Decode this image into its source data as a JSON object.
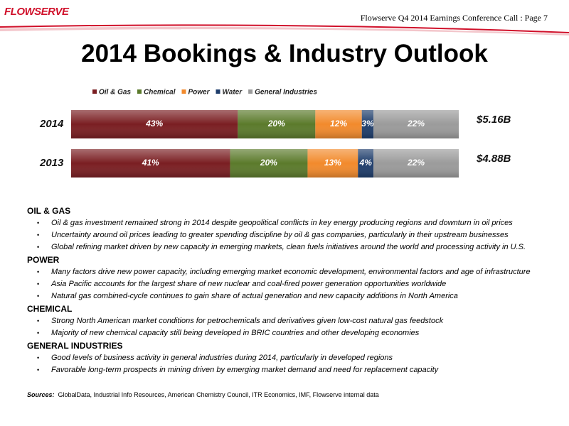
{
  "header": {
    "logo": "FLOWSERVE",
    "text": "Flowserve Q4 2014 Earnings Conference Call  : Page 7"
  },
  "title": "2014 Bookings & Industry Outlook",
  "chart_data": {
    "type": "stacked-bar-horizontal",
    "categories": [
      "2014",
      "2013"
    ],
    "series": [
      {
        "name": "Oil & Gas",
        "color": "#7a1e22",
        "values": [
          43,
          41
        ],
        "value_labels": [
          "43%",
          "41%"
        ]
      },
      {
        "name": "Chemical",
        "color": "#5b7a2b",
        "values": [
          20,
          20
        ],
        "value_labels": [
          "20%",
          "20%"
        ]
      },
      {
        "name": "Power",
        "color": "#f28a2c",
        "values": [
          12,
          13
        ],
        "value_labels": [
          "12%",
          "13%"
        ]
      },
      {
        "name": "Water",
        "color": "#1e3d6b",
        "values": [
          3,
          4
        ],
        "value_labels": [
          "3%",
          "4%"
        ]
      },
      {
        "name": "General Industries",
        "color": "#9b9b9b",
        "values": [
          22,
          22
        ],
        "value_labels": [
          "22%",
          "22%"
        ]
      }
    ],
    "annotations": [
      "$5.16B",
      "$4.88B"
    ]
  },
  "sections": [
    {
      "heading": "OIL & GAS",
      "bullets": [
        "Oil & gas investment remained strong in 2014 despite geopolitical conflicts in key energy producing regions and downturn in oil prices",
        "Uncertainty around oil prices leading to greater spending discipline by oil & gas companies, particularly in their upstream businesses",
        "Global refining market driven by new capacity in emerging markets, clean fuels initiatives around the world and processing activity in U.S."
      ]
    },
    {
      "heading": "POWER",
      "bullets": [
        "Many factors drive new power capacity, including emerging market economic development, environmental factors and age of infrastructure",
        "Asia Pacific accounts for  the largest share of new nuclear and coal-fired power generation opportunities worldwide",
        "Natural gas combined-cycle continues to gain share of actual generation and new capacity additions in North America"
      ]
    },
    {
      "heading": "CHEMICAL",
      "bullets": [
        "Strong North American market conditions for petrochemicals and derivatives given low-cost natural gas feedstock",
        "Majority of new chemical capacity still being developed in BRIC countries and other developing economies"
      ]
    },
    {
      "heading": "GENERAL INDUSTRIES",
      "bullets": [
        "Good levels of business activity in general industries during 2014, particularly in developed regions",
        "Favorable long-term prospects in mining driven by emerging market demand and need for replacement capacity"
      ]
    }
  ],
  "sources": {
    "label": "Sources:",
    "text": "GlobalData, Industrial Info Resources, American Chemistry Council, ITR Economics, IMF, Flowserve internal data"
  }
}
